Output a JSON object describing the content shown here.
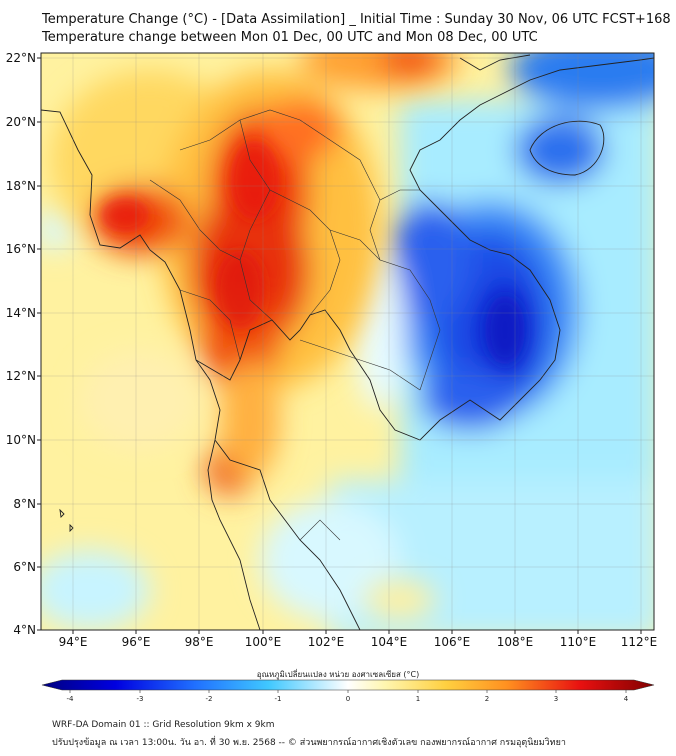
{
  "header": {
    "title_line1": "Temperature Change (°C) - [Data Assimilation] _ Initial Time : Sunday 30 Nov, 06 UTC FCST+168",
    "title_line2": "Temperature change between Mon 01 Dec, 00 UTC and Mon 08 Dec, 00 UTC"
  },
  "map": {
    "lon_labels": [
      "94°E",
      "96°E",
      "98°E",
      "100°E",
      "102°E",
      "104°E",
      "106°E",
      "108°E",
      "110°E",
      "112°E"
    ],
    "lat_labels": [
      "22°N",
      "20°N",
      "18°N",
      "16°N",
      "14°N",
      "12°N",
      "10°N",
      "8°N",
      "6°N",
      "4°N"
    ],
    "warm_color": "#e8200a",
    "cold_color": "#1030e0",
    "neutral_color": "#fff0b0"
  },
  "colorbar": {
    "label": "อุณหภูมิเปลี่ยนแปลง หน่วย องศาเซลเซียส (°C)",
    "tick_labels": [
      "-4",
      "-3",
      "-2",
      "-1",
      "0",
      "1",
      "2",
      "3",
      "4"
    ],
    "min": -4,
    "max": 4
  },
  "footer": {
    "line1": "WRF-DA Domain 01 :: Grid Resolution 9km x 9km",
    "line2": "ปรับปรุงข้อมูล ณ เวลา 13:00น. วัน อา. ที่ 30 พ.ย. 2568 -- © ส่วนพยากรณ์อากาศเชิงตัวเลข กองพยากรณ์อากาศ กรมอุตุนิยมวิทยา"
  }
}
